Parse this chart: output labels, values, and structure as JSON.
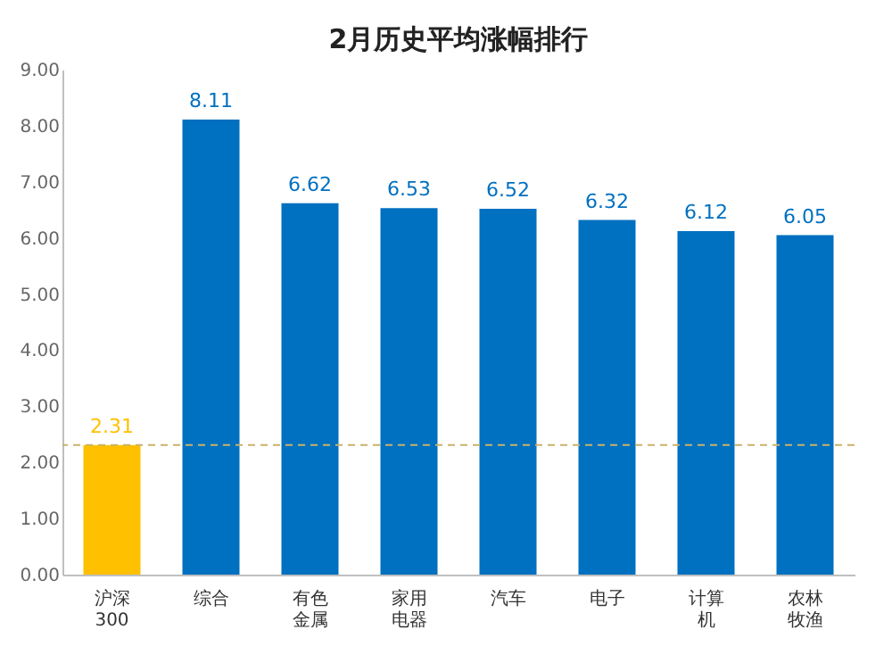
{
  "chart_data": {
    "type": "bar",
    "title": "2月历史平均涨幅排行",
    "categories": [
      "沪深300",
      "综合",
      "有色金属",
      "家用电器",
      "汽车",
      "电子",
      "计算机",
      "农林牧渔"
    ],
    "values": [
      2.31,
      8.11,
      6.62,
      6.53,
      6.52,
      6.32,
      6.12,
      6.05
    ],
    "colors": [
      "#ffc000",
      "#0070c0",
      "#0070c0",
      "#0070c0",
      "#0070c0",
      "#0070c0",
      "#0070c0",
      "#0070c0"
    ],
    "ylim": [
      0,
      9
    ],
    "yticks": [
      {
        "value": 0,
        "label": "0.00"
      },
      {
        "value": 1,
        "label": "1.00"
      },
      {
        "value": 2,
        "label": "2.00"
      },
      {
        "value": 3,
        "label": "3.00"
      },
      {
        "value": 4,
        "label": "4.00"
      },
      {
        "value": 5,
        "label": "5.00"
      },
      {
        "value": 6,
        "label": "6.00"
      },
      {
        "value": 7,
        "label": "7.00"
      },
      {
        "value": 8,
        "label": "8.00"
      },
      {
        "value": 9,
        "label": "9.00"
      }
    ],
    "ref_lines": [
      {
        "axis": "y",
        "value": 2.31,
        "color": "#c9b36a",
        "line_style": "dashed"
      }
    ],
    "data_labels": true,
    "grid": false
  }
}
